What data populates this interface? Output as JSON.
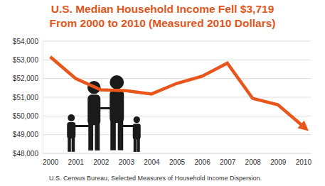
{
  "chart_data": {
    "type": "line",
    "title": "U.S. Median Household Income Fell $3,719",
    "subtitle": "From 2000 to 2010 (Measured 2010 Dollars)",
    "source": "U.S. Census Bureau, Selected Measures of Household Income Dispersion.",
    "categories": [
      "2000",
      "2001",
      "2002",
      "2003",
      "2004",
      "2005",
      "2006",
      "2007",
      "2008",
      "2009",
      "2010"
    ],
    "values": [
      53164,
      52005,
      51398,
      51353,
      51174,
      51739,
      52124,
      52823,
      50939,
      50599,
      49445
    ],
    "color": "#e8561c",
    "ylim": [
      48000,
      54000
    ],
    "yticks": [
      {
        "value": 48000,
        "label": "$48,000"
      },
      {
        "value": 49000,
        "label": "$49,000"
      },
      {
        "value": 50000,
        "label": "$50,000"
      },
      {
        "value": 51000,
        "label": "$51,000"
      },
      {
        "value": 52000,
        "label": "$52,000"
      },
      {
        "value": 53000,
        "label": "$53,000"
      },
      {
        "value": 54000,
        "label": "$54,000"
      }
    ],
    "grid": true
  }
}
